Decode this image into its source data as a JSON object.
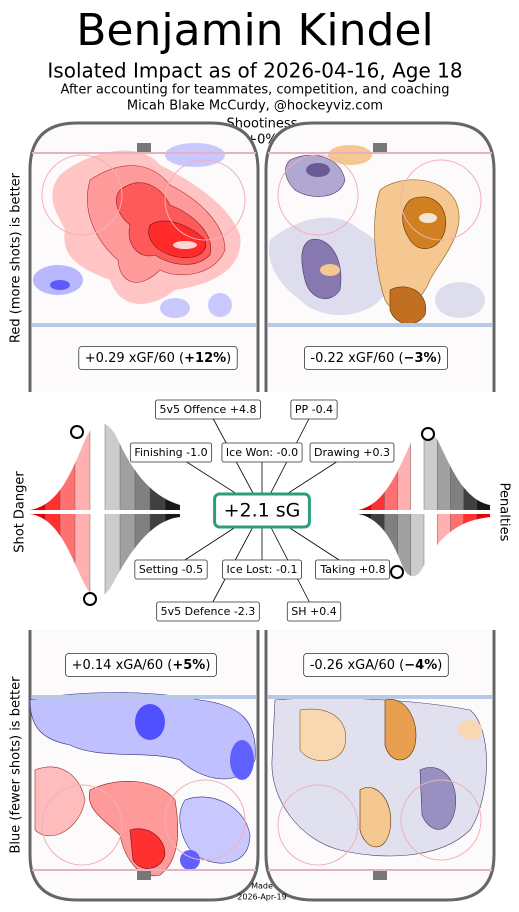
{
  "title": "Benjamin Kindel",
  "subtitle": "Isolated Impact as of 2026-04-16, Age 18",
  "notes": [
    "After accounting for teammates, competition, and coaching",
    "Micah Blake McCurdy, @hockeyviz.com"
  ],
  "shootiness": {
    "label": "Shootiness",
    "value": "+0%"
  },
  "side_labels": {
    "offence": "Red (more shots) is better",
    "defence": "Blue (fewer shots) is better",
    "shot_danger": "Shot Danger",
    "penalties": "Penalties"
  },
  "rate_boxes": [
    {
      "text": "+0.29 xGF/60 (",
      "bold": "+12%",
      "close": ")"
    },
    {
      "text": "-0.22 xGF/60 (",
      "bold": "−3%",
      "close": ")"
    },
    {
      "text": "+0.14 xGA/60 (",
      "bold": "+5%",
      "close": ")"
    },
    {
      "text": "-0.26 xGA/60 (",
      "bold": "−4%",
      "close": ")"
    }
  ],
  "center": "+2.1 sG",
  "components": [
    "5v5 Offence +4.8",
    "PP -0.4",
    "Finishing -1.0",
    "Ice Won: -0.0",
    "Drawing +0.3",
    "Setting -0.5",
    "Ice Lost: -0.1",
    "Taking +0.8",
    "5v5 Defence -2.3",
    "SH +0.4"
  ],
  "footer": [
    "Made",
    "2026-Apr-19"
  ]
}
